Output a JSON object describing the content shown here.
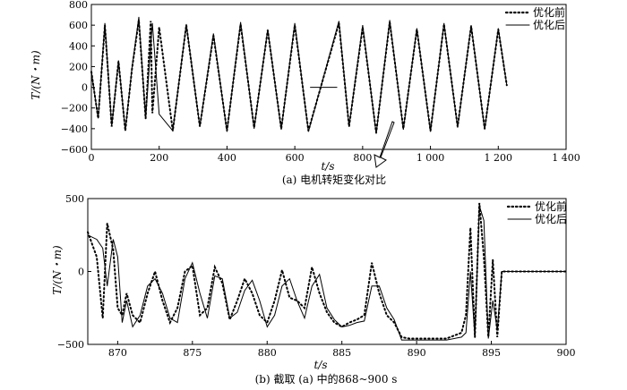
{
  "figure": {
    "caption_a": "(a) 电机转矩变化对比",
    "caption_b": "(b) 截取 (a) 中的868~900 s"
  },
  "chart_data": [
    {
      "type": "line",
      "xlabel": "t/s",
      "ylabel": "T/(N・m)",
      "xlim": [
        0,
        1400
      ],
      "ylim": [
        -600,
        800
      ],
      "xticks": [
        0,
        200,
        400,
        600,
        800,
        1000,
        1200,
        1400
      ],
      "xtick_labels": [
        "0",
        "200",
        "400",
        "600",
        "800",
        "1 000",
        "1 200",
        "1 400"
      ],
      "yticks": [
        -600,
        -400,
        -200,
        0,
        200,
        400,
        600,
        800
      ],
      "ytick_labels": [
        "−600",
        "−400",
        "−200",
        "0",
        "200",
        "400",
        "600",
        "800"
      ],
      "legend_position": "top-right",
      "legend": [
        "优化前",
        "优化后"
      ],
      "segments_note_x": [
        [
          0,
          645
        ],
        [
          725,
          1225
        ]
      ],
      "series": [
        {
          "name": "优化前",
          "style": "dotted",
          "x": [
            0,
            20,
            40,
            60,
            80,
            100,
            120,
            140,
            160,
            175,
            180,
            200,
            240,
            280,
            320,
            360,
            400,
            440,
            480,
            520,
            560,
            600,
            640,
            730,
            760,
            800,
            840,
            880,
            920,
            960,
            1000,
            1040,
            1080,
            1120,
            1160,
            1200,
            1225
          ],
          "y": [
            150,
            -300,
            600,
            -380,
            250,
            -420,
            180,
            650,
            -300,
            640,
            -250,
            580,
            -420,
            600,
            -380,
            500,
            -420,
            610,
            -390,
            550,
            -400,
            600,
            -420,
            620,
            -380,
            580,
            -440,
            630,
            -400,
            560,
            -420,
            610,
            -380,
            590,
            -400,
            560,
            20
          ]
        },
        {
          "name": "优化后",
          "style": "solid",
          "x": [
            0,
            20,
            40,
            60,
            80,
            100,
            120,
            140,
            160,
            180,
            200,
            240,
            280,
            320,
            360,
            400,
            440,
            480,
            520,
            560,
            600,
            640,
            730,
            760,
            800,
            840,
            880,
            920,
            960,
            1000,
            1040,
            1080,
            1120,
            1160,
            1200,
            1225
          ],
          "y": [
            150,
            -300,
            620,
            -380,
            260,
            -420,
            190,
            680,
            -300,
            620,
            -260,
            -420,
            610,
            -380,
            520,
            -430,
            630,
            -400,
            560,
            -410,
            620,
            -430,
            640,
            -380,
            600,
            -450,
            650,
            -410,
            570,
            -430,
            620,
            -390,
            600,
            -410,
            570,
            20
          ]
        }
      ],
      "segment_gap": [
        645,
        725
      ]
    },
    {
      "type": "line",
      "xlabel": "t/s",
      "ylabel": "T/(N・m)",
      "xlim": [
        868,
        900
      ],
      "ylim": [
        -500,
        500
      ],
      "xticks": [
        870,
        875,
        880,
        885,
        890,
        895,
        900
      ],
      "xtick_labels": [
        "870",
        "875",
        "880",
        "885",
        "890",
        "895",
        "900"
      ],
      "yticks": [
        -500,
        0,
        500
      ],
      "ytick_labels": [
        "−500",
        "0",
        "500"
      ],
      "legend_position": "top-right",
      "legend": [
        "优化前",
        "优化后"
      ],
      "series": [
        {
          "name": "优化前",
          "style": "dotted",
          "x": [
            868,
            868.6,
            869.0,
            869.3,
            869.7,
            870.0,
            870.3,
            870.6,
            871.0,
            871.5,
            872.0,
            872.5,
            873.0,
            873.5,
            874.0,
            874.5,
            875.0,
            875.5,
            876.0,
            876.5,
            877.0,
            877.5,
            878.0,
            878.5,
            879.0,
            879.5,
            880.0,
            880.5,
            881.0,
            881.5,
            882.0,
            882.5,
            883.0,
            883.5,
            884.0,
            884.5,
            885.0,
            885.5,
            886.0,
            886.5,
            887.0,
            887.5,
            888.0,
            888.5,
            889.0,
            889.5,
            890.0,
            891.0,
            892.0,
            893.0,
            893.3,
            893.6,
            893.9,
            894.2,
            894.5,
            894.8,
            895.1,
            895.4,
            895.7,
            896.0,
            897.0,
            898.0,
            899.0,
            900.0
          ],
          "y": [
            270,
            100,
            -320,
            330,
            150,
            -250,
            -300,
            -150,
            -300,
            -350,
            -150,
            0,
            -200,
            -350,
            -250,
            0,
            40,
            -300,
            -250,
            30,
            -80,
            -330,
            -200,
            -50,
            -150,
            -300,
            -350,
            -200,
            10,
            -180,
            -200,
            -250,
            30,
            -150,
            -280,
            -350,
            -380,
            -350,
            -330,
            -300,
            60,
            -150,
            -300,
            -350,
            -450,
            -460,
            -460,
            -460,
            -460,
            -420,
            -300,
            300,
            -450,
            470,
            100,
            -450,
            80,
            -450,
            0,
            0,
            0,
            0,
            0,
            0
          ]
        },
        {
          "name": "优化后",
          "style": "solid",
          "x": [
            868,
            868.6,
            869.0,
            869.3,
            869.7,
            870.0,
            870.3,
            870.6,
            871.0,
            871.5,
            872.0,
            872.5,
            873.0,
            873.5,
            874.0,
            874.5,
            875.0,
            875.5,
            876.0,
            876.5,
            877.0,
            877.5,
            878.0,
            878.5,
            879.0,
            879.5,
            880.0,
            880.5,
            881.0,
            881.5,
            882.0,
            882.5,
            883.0,
            883.5,
            884.0,
            884.5,
            885.0,
            885.5,
            886.0,
            886.5,
            887.0,
            887.5,
            888.0,
            888.5,
            889.0,
            889.5,
            890.0,
            891.0,
            892.0,
            893.0,
            893.3,
            893.6,
            893.9,
            894.2,
            894.5,
            894.8,
            895.1,
            895.4,
            895.7,
            896.0,
            897.0,
            898.0,
            899.0,
            900.0
          ],
          "y": [
            250,
            220,
            160,
            -100,
            220,
            100,
            -350,
            -200,
            -380,
            -300,
            -100,
            -50,
            -150,
            -320,
            -350,
            -50,
            60,
            -150,
            -320,
            -30,
            -50,
            -320,
            -280,
            -130,
            -60,
            -200,
            -380,
            -300,
            -100,
            -50,
            -200,
            -320,
            -100,
            -20,
            -250,
            -330,
            -380,
            -370,
            -350,
            -340,
            -100,
            -100,
            -250,
            -330,
            -470,
            -470,
            -470,
            -470,
            -470,
            -450,
            -420,
            0,
            -450,
            450,
            350,
            -460,
            -200,
            -400,
            0,
            0,
            0,
            0,
            0,
            0
          ]
        }
      ]
    }
  ]
}
